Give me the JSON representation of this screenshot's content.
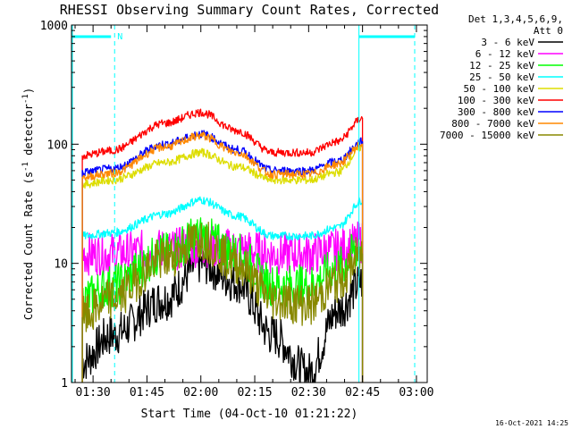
{
  "chart_data": {
    "type": "line",
    "title": "RHESSI Observing Summary Count Rates, Corrected",
    "xlabel": "Start Time (04-Oct-10 01:21:22)",
    "ylabel_main": "Corrected Count Rate (s",
    "ylabel_sup1": "-1",
    "ylabel_mid": " detector",
    "ylabel_sup2": "-1",
    "ylabel_end": ")",
    "yscale": "log",
    "ylim": [
      1,
      1000
    ],
    "xlim_min": [
      84,
      183
    ],
    "x_tick_labels": [
      "01:30",
      "01:45",
      "02:00",
      "02:15",
      "02:30",
      "02:45",
      "03:00"
    ],
    "x_tick_values_min": [
      90,
      105,
      120,
      135,
      150,
      165,
      180
    ],
    "y_tick_labels": [
      "1",
      "10",
      "100",
      "1000"
    ],
    "y_tick_values": [
      1,
      10,
      100,
      1000
    ],
    "legend_header": [
      "Det 1,3,4,5,6,9,",
      "Att 0"
    ],
    "legend_position": "right",
    "series": [
      {
        "name": "3 - 6 keV",
        "color": "#000000",
        "values": [
          1.5,
          2.5,
          5,
          10,
          7,
          2.5,
          1.2,
          4,
          7
        ]
      },
      {
        "name": "6 - 12 keV",
        "color": "#ff00ff",
        "values": [
          12,
          12,
          13,
          14,
          13,
          12,
          12,
          13,
          15
        ]
      },
      {
        "name": "12 - 25 keV",
        "color": "#00ff00",
        "values": [
          5,
          6.5,
          12,
          17,
          12,
          6.5,
          6.5,
          9,
          14
        ]
      },
      {
        "name": "25 - 50 keV",
        "color": "#00ffff",
        "values": [
          17,
          18,
          26,
          34,
          25,
          17,
          17,
          20,
          34
        ]
      },
      {
        "name": "50 - 100 keV",
        "color": "#dddd00",
        "values": [
          46,
          50,
          70,
          85,
          65,
          50,
          50,
          58,
          95
        ]
      },
      {
        "name": "100 - 300 keV",
        "color": "#ff0000",
        "values": [
          80,
          88,
          150,
          185,
          130,
          85,
          85,
          105,
          165
        ]
      },
      {
        "name": "300 - 800 keV",
        "color": "#0000ff",
        "values": [
          58,
          62,
          100,
          122,
          90,
          60,
          60,
          72,
          105
        ]
      },
      {
        "name": "800 - 7000 keV",
        "color": "#ff8800",
        "values": [
          53,
          57,
          95,
          118,
          85,
          56,
          56,
          68,
          100
        ]
      },
      {
        "name": "7000 - 15000 keV",
        "color": "#888800",
        "values": [
          3.5,
          5,
          11,
          16,
          10,
          5,
          4.5,
          7,
          12
        ]
      }
    ],
    "series_x_min": [
      87,
      95,
      110,
      120,
      130,
      140,
      150,
      158,
      165
    ],
    "annotations": {
      "night_marker": "N",
      "timestamp": "16-Oct-2021 14:25"
    }
  },
  "colors": {
    "background": "#ffffff",
    "axes": "#000000",
    "saa_lines": "#00ffff"
  }
}
